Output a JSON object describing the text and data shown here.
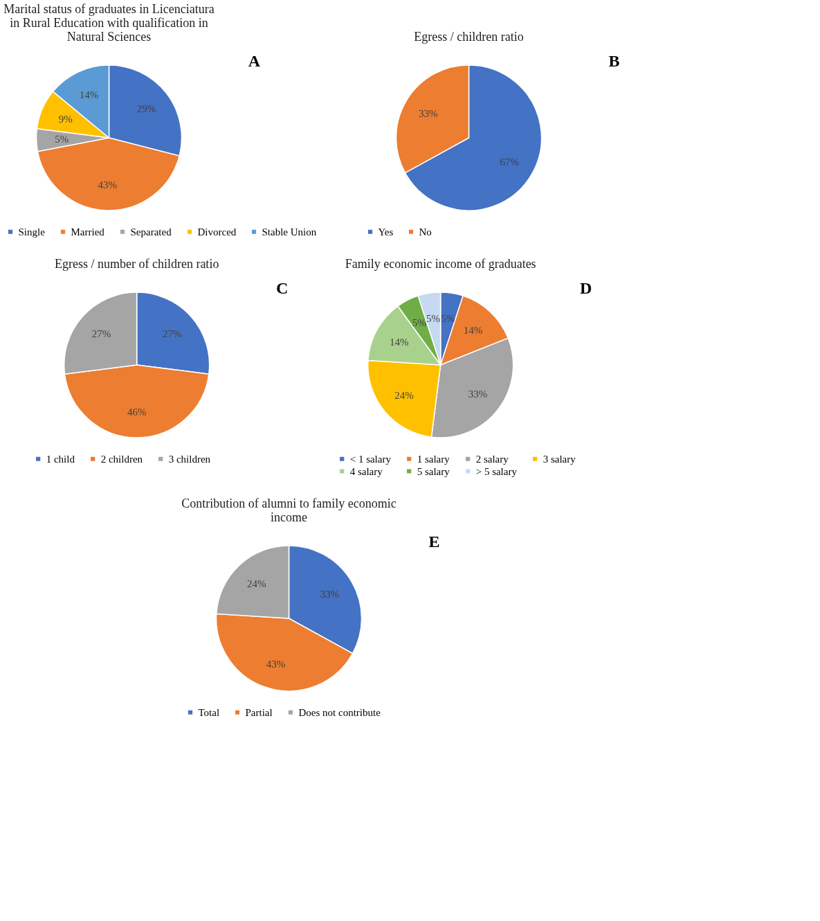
{
  "chart_data": [
    {
      "type": "pie",
      "title": "Marital status of graduates in Licenciatura in Rural Education with qualification in Natural Sciences",
      "categories": [
        "Single",
        "Married",
        "Separated",
        "Divorced",
        "Stable Union"
      ],
      "values": [
        29,
        43,
        5,
        9,
        14
      ],
      "value_labels": [
        "29%",
        "43%",
        "5%",
        "9%",
        "14%"
      ],
      "colors": [
        "#4472c4",
        "#ed7d31",
        "#a5a5a5",
        "#ffc000",
        "#5b9bd5"
      ],
      "legend": "bottom",
      "annotations": [
        "A"
      ]
    },
    {
      "type": "pie",
      "title": "Egress / children ratio",
      "categories": [
        "Yes",
        "No"
      ],
      "values": [
        67,
        33
      ],
      "value_labels": [
        "67%",
        "33%"
      ],
      "colors": [
        "#4472c4",
        "#ed7d31"
      ],
      "legend": "bottom",
      "annotations": [
        "B"
      ]
    },
    {
      "type": "pie",
      "title": "Egress / number of children ratio",
      "categories": [
        "1 child",
        "2 children",
        "3 children"
      ],
      "values": [
        27,
        46,
        27
      ],
      "value_labels": [
        "27%",
        "46%",
        "27%"
      ],
      "colors": [
        "#4472c4",
        "#ed7d31",
        "#a5a5a5"
      ],
      "legend": "bottom",
      "annotations": [
        "C"
      ]
    },
    {
      "type": "pie",
      "title": "Family economic income of graduates",
      "categories": [
        "< 1 salary",
        "1 salary",
        "2 salary",
        "3 salary",
        "4 salary",
        "5 salary",
        "> 5 salary"
      ],
      "values": [
        5,
        14,
        33,
        24,
        14,
        5,
        5
      ],
      "value_labels": [
        "5%",
        "14%",
        "33%",
        "24%",
        "14%",
        "5%",
        "5%"
      ],
      "colors": [
        "#4472c4",
        "#ed7d31",
        "#a5a5a5",
        "#ffc000",
        "#a9d18e",
        "#70ad47",
        "#c5d9f1"
      ],
      "legend": "bottom",
      "annotations": [
        "D"
      ]
    },
    {
      "type": "pie",
      "title": "Contribution of alumni to family economic income",
      "categories": [
        "Total",
        "Partial",
        "Does not contribute"
      ],
      "values": [
        33,
        43,
        24
      ],
      "value_labels": [
        "33%",
        "43%",
        "24%"
      ],
      "colors": [
        "#4472c4",
        "#ed7d31",
        "#a5a5a5"
      ],
      "legend": "bottom",
      "annotations": [
        "E"
      ]
    }
  ]
}
